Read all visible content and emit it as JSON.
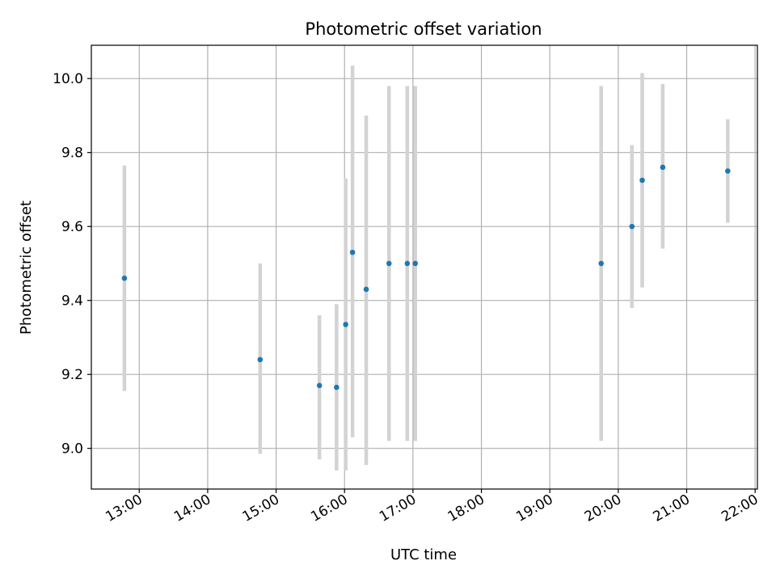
{
  "chart_data": {
    "type": "scatter",
    "title": "Photometric offset variation",
    "xlabel": "UTC time",
    "ylabel": "Photometric offset",
    "x_axis_kind": "time",
    "xlim": [
      "12:18",
      "22:02"
    ],
    "ylim": [
      8.89,
      10.09
    ],
    "grid": true,
    "legend": "none",
    "x_ticks": [
      "13:00",
      "14:00",
      "15:00",
      "16:00",
      "17:00",
      "18:00",
      "19:00",
      "20:00",
      "21:00",
      "22:00"
    ],
    "y_ticks": [
      9.0,
      9.2,
      9.4,
      9.6,
      9.8,
      10.0
    ],
    "y_tick_labels": [
      "9.0",
      "9.2",
      "9.4",
      "9.6",
      "9.8",
      "10.0"
    ],
    "colors": {
      "point": "#1f77b4",
      "errorbar": "#d3d3d3",
      "grid": "#b0b0b0",
      "axes": "#000000"
    },
    "points": [
      {
        "x": "12:47",
        "y": 9.46,
        "yerr_low": 9.155,
        "yerr_high": 9.765
      },
      {
        "x": "14:46",
        "y": 9.24,
        "yerr_low": 8.985,
        "yerr_high": 9.5
      },
      {
        "x": "15:38",
        "y": 9.17,
        "yerr_low": 8.97,
        "yerr_high": 9.36
      },
      {
        "x": "15:53",
        "y": 9.165,
        "yerr_low": 8.94,
        "yerr_high": 9.39
      },
      {
        "x": "16:01",
        "y": 9.335,
        "yerr_low": 8.94,
        "yerr_high": 9.73
      },
      {
        "x": "16:07",
        "y": 9.53,
        "yerr_low": 9.03,
        "yerr_high": 10.035
      },
      {
        "x": "16:19",
        "y": 9.43,
        "yerr_low": 8.955,
        "yerr_high": 9.9
      },
      {
        "x": "16:39",
        "y": 9.5,
        "yerr_low": 9.02,
        "yerr_high": 9.98
      },
      {
        "x": "16:55",
        "y": 9.5,
        "yerr_low": 9.02,
        "yerr_high": 9.98
      },
      {
        "x": "17:02",
        "y": 9.5,
        "yerr_low": 9.02,
        "yerr_high": 9.98
      },
      {
        "x": "19:45",
        "y": 9.5,
        "yerr_low": 9.02,
        "yerr_high": 9.98
      },
      {
        "x": "20:12",
        "y": 9.6,
        "yerr_low": 9.38,
        "yerr_high": 9.82
      },
      {
        "x": "20:21",
        "y": 9.725,
        "yerr_low": 9.435,
        "yerr_high": 10.015
      },
      {
        "x": "20:39",
        "y": 9.76,
        "yerr_low": 9.54,
        "yerr_high": 9.985
      },
      {
        "x": "21:36",
        "y": 9.75,
        "yerr_low": 9.61,
        "yerr_high": 9.89
      }
    ]
  }
}
